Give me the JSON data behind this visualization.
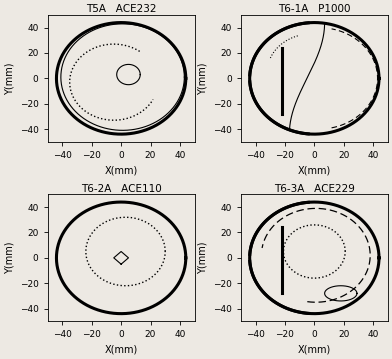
{
  "titles": [
    "T5A   ACE232",
    "T6-1A   P1000",
    "T6-2A   ACE110",
    "T6-3A   ACE229"
  ],
  "xlim": [
    -50,
    50
  ],
  "ylim": [
    -50,
    50
  ],
  "xlabel": "X(mm)",
  "ylabel": "Y(mm)",
  "tick_positions": [
    -40,
    -20,
    0,
    20,
    40
  ],
  "background": "#ede9e3"
}
